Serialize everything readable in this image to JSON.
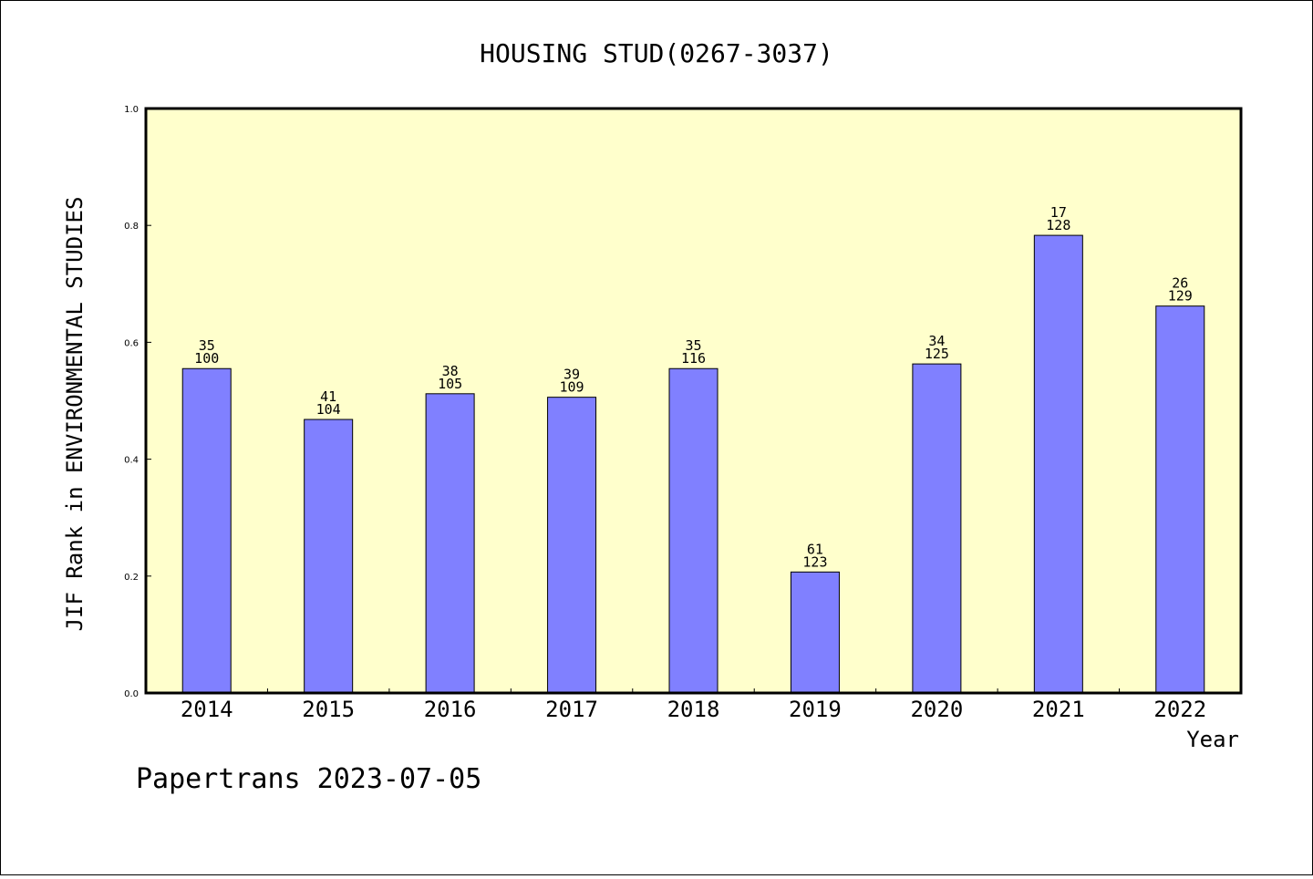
{
  "chart_data": {
    "type": "bar",
    "title": "HOUSING STUD(0267-3037)",
    "xlabel": "Year",
    "ylabel": "JIF Rank in ENVIRONMENTAL STUDIES",
    "ylim": [
      0,
      1.0
    ],
    "yticks": [
      "0.0",
      "0.2",
      "0.4",
      "0.6",
      "0.8",
      "1.0"
    ],
    "grid": false,
    "categories": [
      "2014",
      "2015",
      "2016",
      "2017",
      "2018",
      "2019",
      "2020",
      "2021",
      "2022"
    ],
    "values": [
      0.555,
      0.468,
      0.512,
      0.506,
      0.555,
      0.207,
      0.563,
      0.783,
      0.662
    ],
    "rank_labels": [
      "35",
      "41",
      "38",
      "39",
      "35",
      "61",
      "34",
      "17",
      "26"
    ],
    "total_labels": [
      "100",
      "104",
      "105",
      "109",
      "116",
      "123",
      "125",
      "128",
      "129"
    ],
    "colors": {
      "plot_background": "#ffffcc",
      "bar_fill": "#8080ff",
      "bar_stroke": "#000000"
    }
  },
  "footer": "Papertrans 2023-07-05"
}
